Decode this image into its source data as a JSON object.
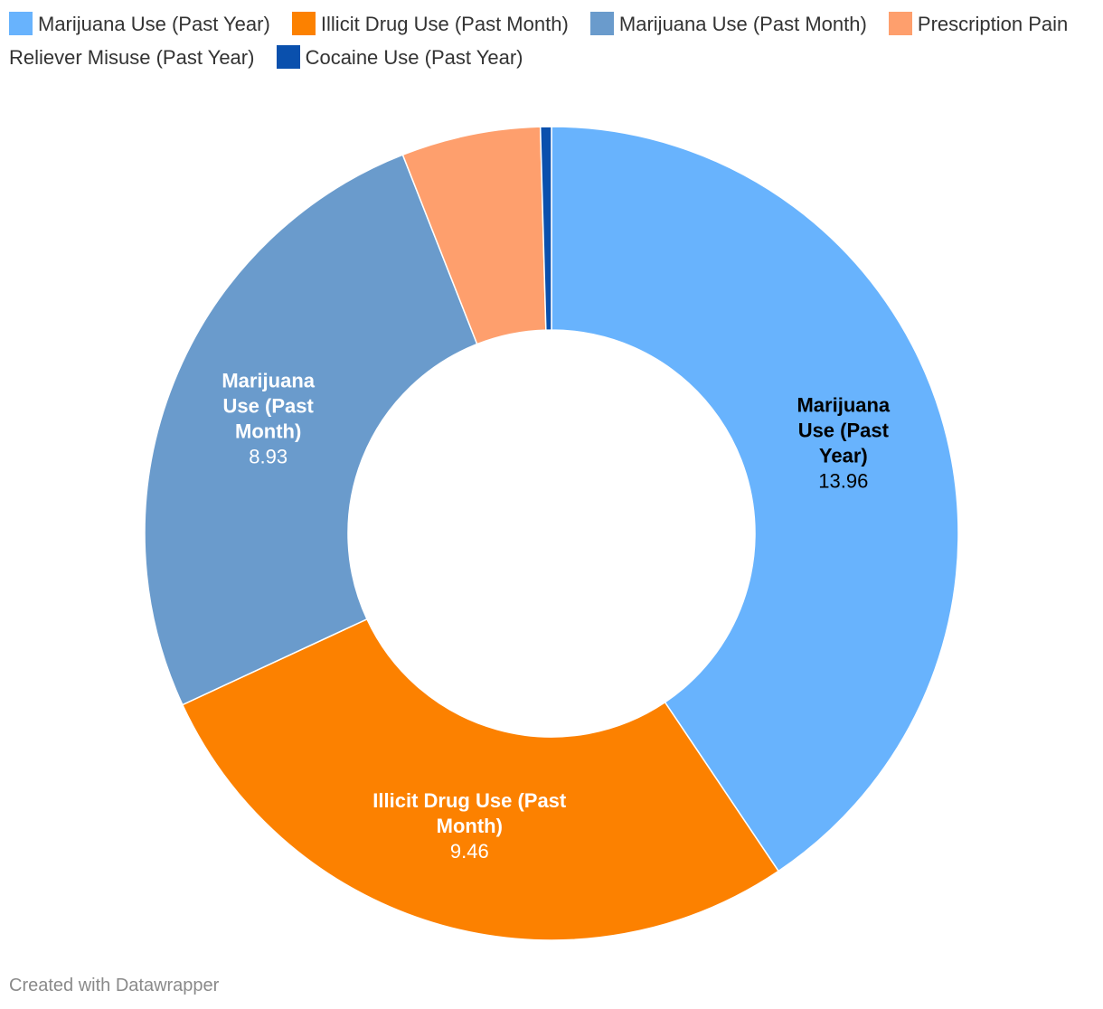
{
  "chart_data": {
    "type": "pie",
    "categories": [
      "Marijuana Use (Past Year)",
      "Illicit Drug Use (Past Month)",
      "Marijuana Use (Past Month)",
      "Prescription Pain Reliever Misuse (Past Year)",
      "Cocaine Use (Past Year)"
    ],
    "values": [
      13.96,
      9.46,
      8.93,
      1.9,
      0.15
    ],
    "colors": [
      "#68b3fd",
      "#fc8100",
      "#6a9bcc",
      "#fe9f6d",
      "#0a50ad"
    ],
    "labels": [
      {
        "index": 0,
        "lines": [
          "Marijuana",
          "Use (Past",
          "Year)"
        ],
        "value_text": "13.96",
        "text_color": "#000000"
      },
      {
        "index": 1,
        "lines": [
          "Illicit Drug Use (Past",
          "Month)"
        ],
        "value_text": "9.46",
        "text_color": "#ffffff"
      },
      {
        "index": 2,
        "lines": [
          "Marijuana",
          "Use (Past",
          "Month)"
        ],
        "value_text": "8.93",
        "text_color": "#ffffff"
      }
    ],
    "legend_position": "top-left",
    "donut": true
  },
  "legend": [
    {
      "label": "Marijuana Use (Past Year)",
      "color": "#68b3fd"
    },
    {
      "label": "Illicit Drug Use (Past Month)",
      "color": "#fc8100"
    },
    {
      "label": "Marijuana Use (Past Month)",
      "color": "#6a9bcc"
    },
    {
      "label": "Prescription Pain Reliever Misuse (Past Year)",
      "color": "#fe9f6d"
    },
    {
      "label": "Cocaine Use (Past Year)",
      "color": "#0a50ad"
    }
  ],
  "footer": {
    "credit": "Created with Datawrapper"
  }
}
